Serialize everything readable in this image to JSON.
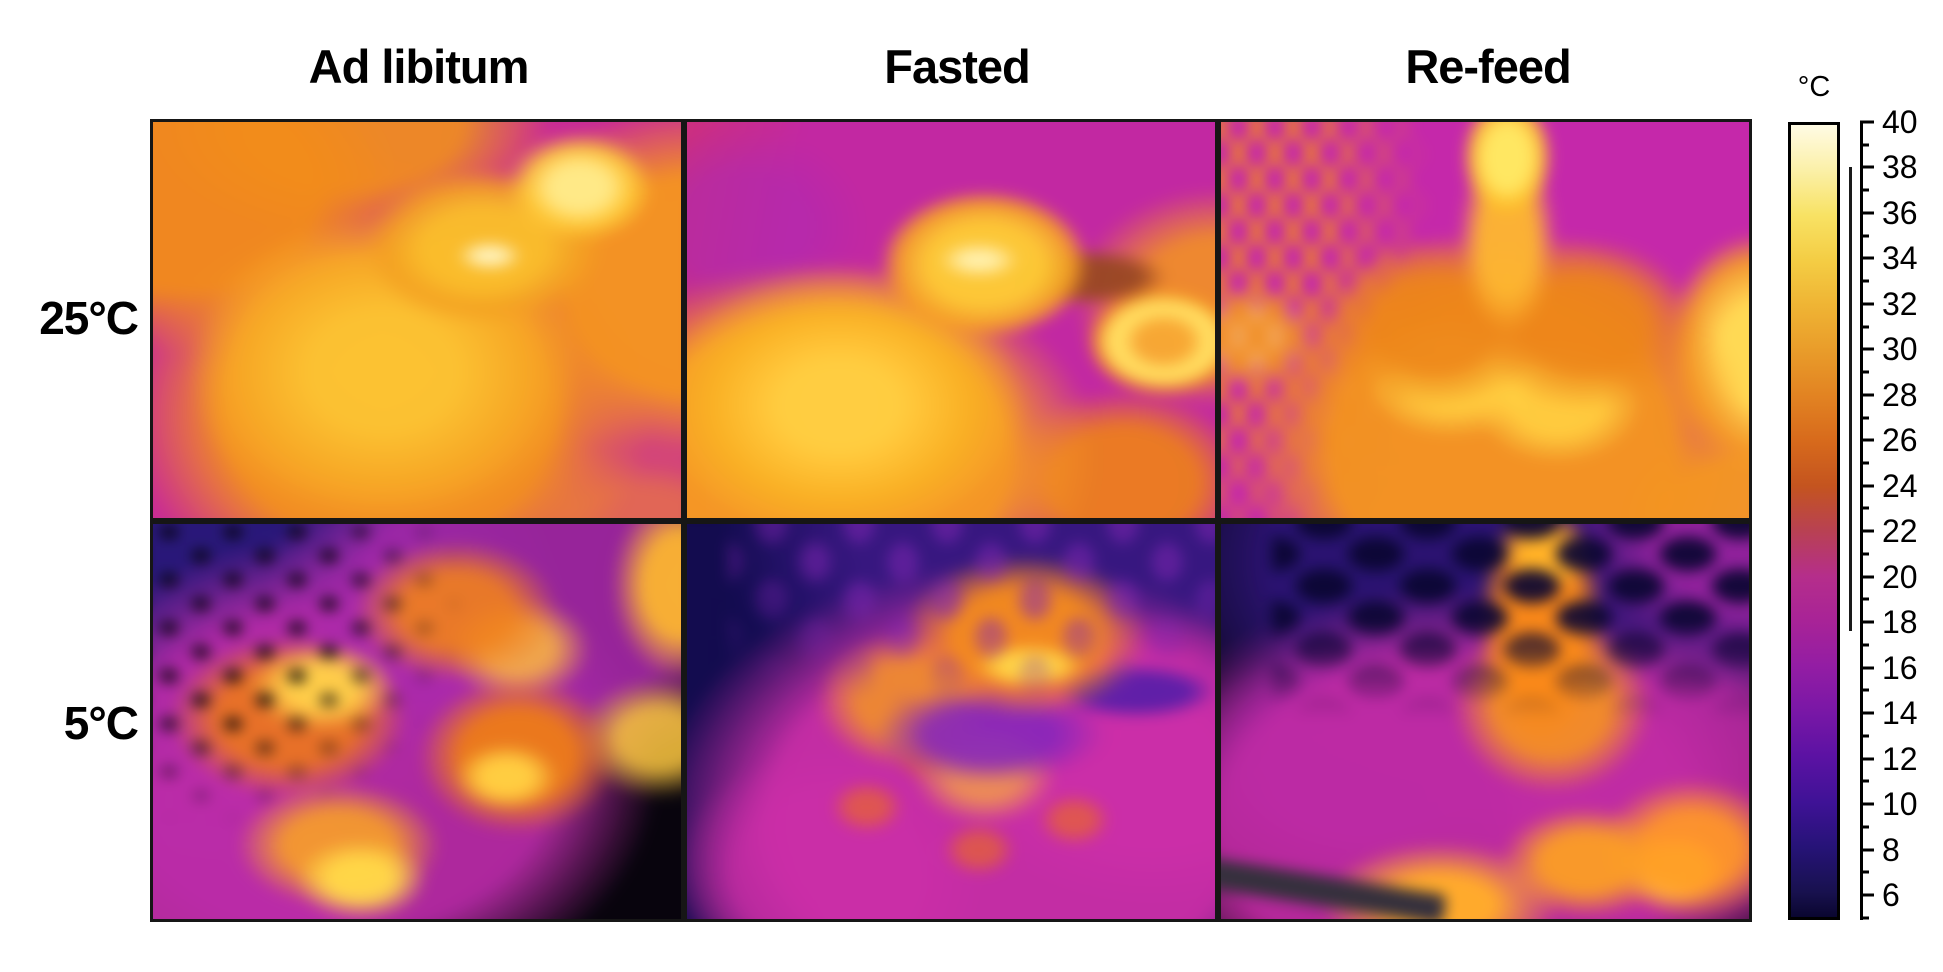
{
  "figure": {
    "type": "thermal-imaging-grid",
    "column_headers": [
      "Ad libitum",
      "Fasted",
      "Re-feed"
    ],
    "row_labels": [
      "25°C",
      "5°C"
    ],
    "panels": [
      {
        "row": "25°C",
        "column": "Ad libitum",
        "description": "ducklings glowing yellow-orange on magenta background"
      },
      {
        "row": "25°C",
        "column": "Fasted",
        "description": "duckling with warm orange body, dark beak, bright egg-shaped blob at right, magenta background"
      },
      {
        "row": "25°C",
        "column": "Re-feed",
        "description": "duckling facing up with bright yellow head, orange wire mesh at upper left, magenta background"
      },
      {
        "row": "5°C",
        "column": "Ad libitum",
        "description": "mottled magenta-orange ducklings with yellow streaks on black background, dotted cage at upper left"
      },
      {
        "row": "5°C",
        "column": "Fasted",
        "description": "duckling with magenta mottled body, orange head, dark purple beak on navy background"
      },
      {
        "row": "5°C",
        "column": "Re-feed",
        "description": "duckling with vertical orange neck and mottled magenta body, dark cage mesh above, black corners"
      }
    ]
  },
  "colorbar": {
    "title": "°C",
    "max_c": 40,
    "bottom_c": 4.9,
    "major_ticks": [
      40,
      38,
      36,
      34,
      32,
      30,
      28,
      26,
      24,
      22,
      20,
      18,
      16,
      14,
      12,
      10,
      8,
      6
    ],
    "minor_ticks": [
      39,
      37,
      35,
      33,
      31,
      29,
      27,
      25,
      23,
      21,
      19,
      17,
      15,
      13,
      11,
      9,
      7,
      5
    ],
    "range_marker": {
      "from_c": 38,
      "to_c": 18
    },
    "palette_name": "ironbow",
    "gradient_stops": [
      {
        "t": 40,
        "c": "#fffbe4"
      },
      {
        "t": 38,
        "c": "#fbf0a8"
      },
      {
        "t": 36,
        "c": "#f8e264"
      },
      {
        "t": 34,
        "c": "#f4cd44"
      },
      {
        "t": 32,
        "c": "#efb434"
      },
      {
        "t": 30,
        "c": "#e99c2a"
      },
      {
        "t": 28,
        "c": "#e28322"
      },
      {
        "t": 26,
        "c": "#d76a1c"
      },
      {
        "t": 24,
        "c": "#c4541f"
      },
      {
        "t": 22,
        "c": "#b84153"
      },
      {
        "t": 20,
        "c": "#b52e8b"
      },
      {
        "t": 18,
        "c": "#a82397"
      },
      {
        "t": 16,
        "c": "#931da4"
      },
      {
        "t": 14,
        "c": "#7917a6"
      },
      {
        "t": 12,
        "c": "#5b12a3"
      },
      {
        "t": 10,
        "c": "#3f1296"
      },
      {
        "t": 8,
        "c": "#261377"
      },
      {
        "t": 6,
        "c": "#18114e"
      },
      {
        "t": 4.9,
        "c": "#0a0630"
      }
    ]
  },
  "colors": {
    "page_background": "#ffffff",
    "text": "#000000",
    "panel_border": "#161616",
    "magenta_warm_bg": "#c02aa0",
    "navy_cold_bg": "#170e58"
  }
}
